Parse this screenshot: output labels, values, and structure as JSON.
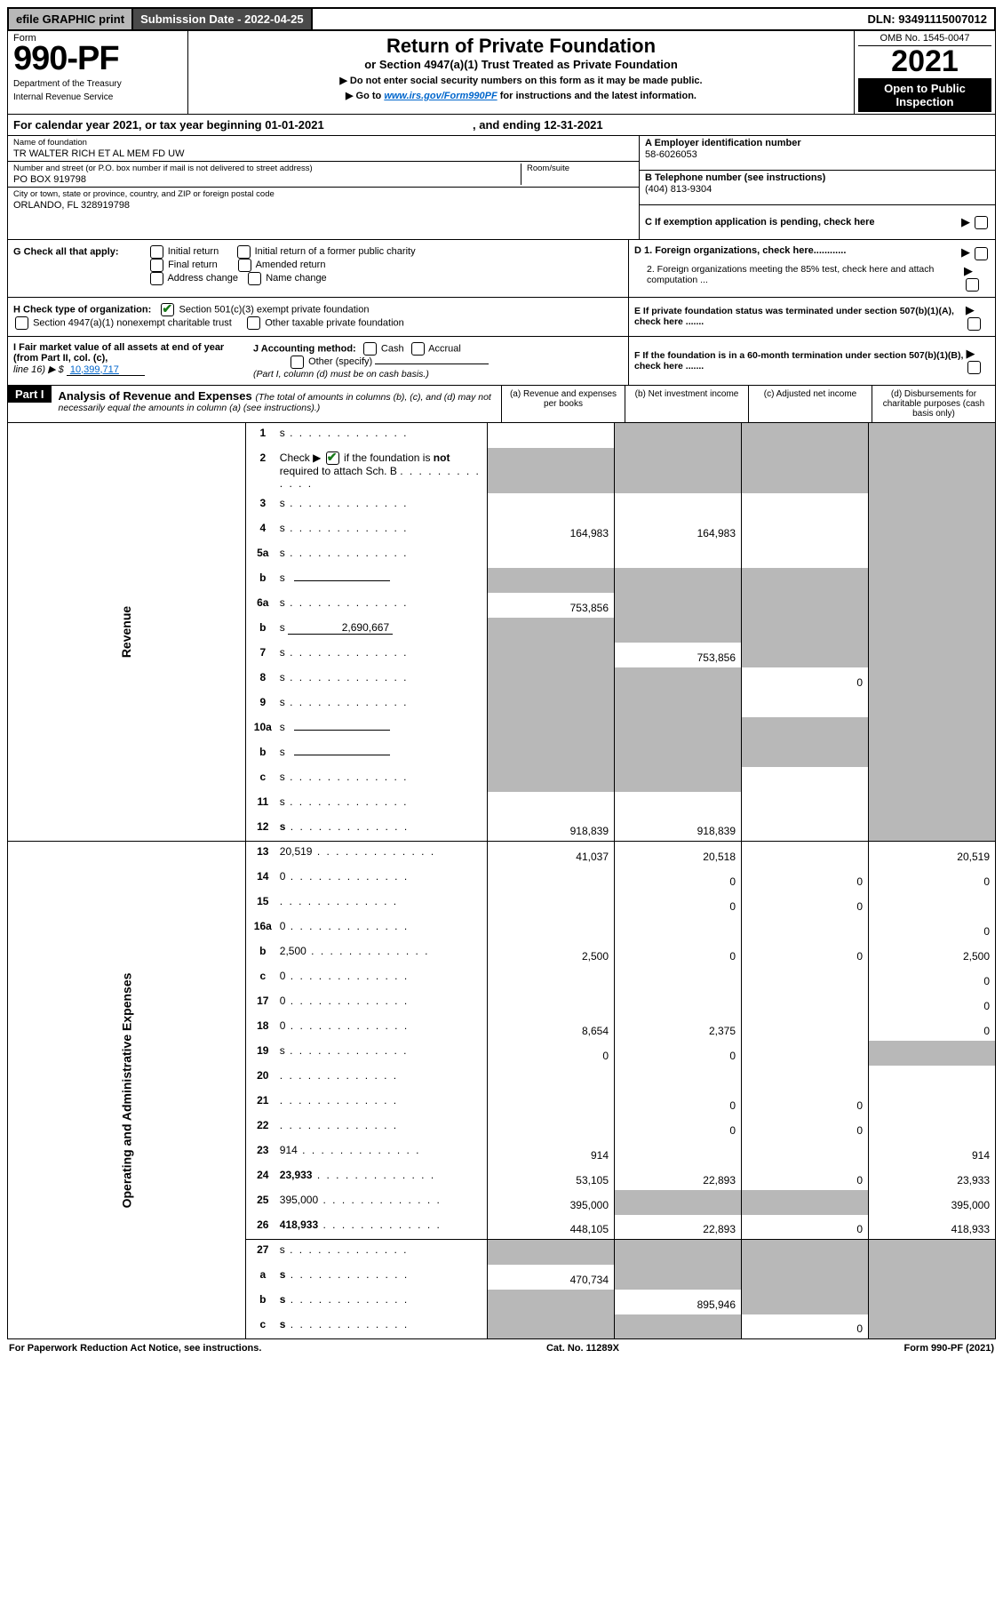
{
  "top": {
    "efile": "efile GRAPHIC print",
    "sub_date_label": "Submission Date - 2022-04-25",
    "dln": "DLN: 93491115007012"
  },
  "header": {
    "form_label": "Form",
    "form_number": "990-PF",
    "dept1": "Department of the Treasury",
    "dept2": "Internal Revenue Service",
    "title": "Return of Private Foundation",
    "subtitle": "or Section 4947(a)(1) Trust Treated as Private Foundation",
    "instr1": "▶ Do not enter social security numbers on this form as it may be made public.",
    "instr2a": "▶ Go to ",
    "instr2_link": "www.irs.gov/Form990PF",
    "instr2b": " for instructions and the latest information.",
    "omb": "OMB No. 1545-0047",
    "year": "2021",
    "open": "Open to Public Inspection"
  },
  "period": {
    "text_a": "For calendar year 2021, or tax year beginning 01-01-2021",
    "text_b": ", and ending 12-31-2021"
  },
  "foundation": {
    "name_label": "Name of foundation",
    "name": "TR WALTER RICH ET AL MEM FD UW",
    "addr_label": "Number and street (or P.O. box number if mail is not delivered to street address)",
    "addr": "PO BOX 919798",
    "room_label": "Room/suite",
    "city_label": "City or town, state or province, country, and ZIP or foreign postal code",
    "city": "ORLANDO, FL  328919798",
    "ein_label": "A Employer identification number",
    "ein": "58-6026053",
    "phone_label": "B Telephone number (see instructions)",
    "phone": "(404) 813-9304",
    "c_label": "C If exemption application is pending, check here"
  },
  "boxG": {
    "label": "G Check all that apply:",
    "opts": [
      "Initial return",
      "Final return",
      "Address change",
      "Initial return of a former public charity",
      "Amended return",
      "Name change"
    ]
  },
  "boxD": {
    "d1": "D 1. Foreign organizations, check here............",
    "d2": "2. Foreign organizations meeting the 85% test, check here and attach computation ..."
  },
  "boxH": {
    "label": "H Check type of organization:",
    "opt1": "Section 501(c)(3) exempt private foundation",
    "opt2": "Section 4947(a)(1) nonexempt charitable trust",
    "opt3": "Other taxable private foundation"
  },
  "boxE": {
    "text": "E If private foundation status was terminated under section 507(b)(1)(A), check here ......."
  },
  "boxI": {
    "label": "I Fair market value of all assets at end of year (from Part II, col. (c),",
    "line": "line 16) ▶ $",
    "value": "10,399,717"
  },
  "boxJ": {
    "label": "J Accounting method:",
    "cash": "Cash",
    "accrual": "Accrual",
    "other": "Other (specify)",
    "note": "(Part I, column (d) must be on cash basis.)"
  },
  "boxF": {
    "text": "F If the foundation is in a 60-month termination under section 507(b)(1)(B), check here ......."
  },
  "part1": {
    "label": "Part I",
    "title": "Analysis of Revenue and Expenses ",
    "note": "(The total of amounts in columns (b), (c), and (d) may not necessarily equal the amounts in column (a) (see instructions).)",
    "col_a": "(a)  Revenue and expenses per books",
    "col_b": "(b)  Net investment income",
    "col_c": "(c)  Adjusted net income",
    "col_d": "(d)  Disbursements for charitable purposes (cash basis only)"
  },
  "side": {
    "revenue": "Revenue",
    "expenses": "Operating and Administrative Expenses"
  },
  "rows": [
    {
      "n": "1",
      "d": "s",
      "a": "",
      "b": "s",
      "c": "s"
    },
    {
      "n": "2",
      "d": "s",
      "a": "s",
      "b": "s",
      "c": "s",
      "raw": true,
      "checked": true
    },
    {
      "n": "3",
      "d": "s",
      "a": "",
      "b": "",
      "c": ""
    },
    {
      "n": "4",
      "d": "s",
      "a": "164,983",
      "b": "164,983",
      "c": ""
    },
    {
      "n": "5a",
      "d": "s",
      "a": "",
      "b": "",
      "c": ""
    },
    {
      "n": "b",
      "d": "s",
      "a": "s",
      "b": "s",
      "c": "s",
      "inline": true
    },
    {
      "n": "6a",
      "d": "s",
      "a": "753,856",
      "b": "s",
      "c": "s"
    },
    {
      "n": "b",
      "d": "s",
      "a": "s",
      "b": "s",
      "c": "s",
      "inline_amt": "2,690,667"
    },
    {
      "n": "7",
      "d": "s",
      "a": "s",
      "b": "753,856",
      "c": "s"
    },
    {
      "n": "8",
      "d": "s",
      "a": "s",
      "b": "s",
      "c": "0"
    },
    {
      "n": "9",
      "d": "s",
      "a": "s",
      "b": "s",
      "c": ""
    },
    {
      "n": "10a",
      "d": "s",
      "a": "s",
      "b": "s",
      "c": "s",
      "inline": true
    },
    {
      "n": "b",
      "d": "s",
      "a": "s",
      "b": "s",
      "c": "s",
      "inline": true
    },
    {
      "n": "c",
      "d": "s",
      "a": "s",
      "b": "s",
      "c": ""
    },
    {
      "n": "11",
      "d": "s",
      "a": "",
      "b": "",
      "c": ""
    },
    {
      "n": "12",
      "d": "s",
      "a": "918,839",
      "b": "918,839",
      "c": "",
      "bold": true
    },
    {
      "n": "13",
      "d": "20,519",
      "a": "41,037",
      "b": "20,518",
      "c": "",
      "sep": true
    },
    {
      "n": "14",
      "d": "0",
      "a": "",
      "b": "0",
      "c": "0"
    },
    {
      "n": "15",
      "d": "",
      "a": "",
      "b": "0",
      "c": "0"
    },
    {
      "n": "16a",
      "d": "0",
      "a": "",
      "b": "",
      "c": ""
    },
    {
      "n": "b",
      "d": "2,500",
      "a": "2,500",
      "b": "0",
      "c": "0"
    },
    {
      "n": "c",
      "d": "0",
      "a": "",
      "b": "",
      "c": ""
    },
    {
      "n": "17",
      "d": "0",
      "a": "",
      "b": "",
      "c": ""
    },
    {
      "n": "18",
      "d": "0",
      "a": "8,654",
      "b": "2,375",
      "c": ""
    },
    {
      "n": "19",
      "d": "s",
      "a": "0",
      "b": "0",
      "c": ""
    },
    {
      "n": "20",
      "d": "",
      "a": "",
      "b": "",
      "c": ""
    },
    {
      "n": "21",
      "d": "",
      "a": "",
      "b": "0",
      "c": "0"
    },
    {
      "n": "22",
      "d": "",
      "a": "",
      "b": "0",
      "c": "0"
    },
    {
      "n": "23",
      "d": "914",
      "a": "914",
      "b": "",
      "c": ""
    },
    {
      "n": "24",
      "d": "23,933",
      "a": "53,105",
      "b": "22,893",
      "c": "0",
      "bold": true
    },
    {
      "n": "25",
      "d": "395,000",
      "a": "395,000",
      "b": "s",
      "c": "s"
    },
    {
      "n": "26",
      "d": "418,933",
      "a": "448,105",
      "b": "22,893",
      "c": "0",
      "bold": true
    },
    {
      "n": "27",
      "d": "s",
      "a": "s",
      "b": "s",
      "c": "s",
      "sep": true
    },
    {
      "n": "a",
      "d": "s",
      "a": "470,734",
      "b": "s",
      "c": "s",
      "bold": true
    },
    {
      "n": "b",
      "d": "s",
      "a": "s",
      "b": "895,946",
      "c": "s",
      "bold": true
    },
    {
      "n": "c",
      "d": "s",
      "a": "s",
      "b": "s",
      "c": "0",
      "bold": true
    }
  ],
  "footer": {
    "left": "For Paperwork Reduction Act Notice, see instructions.",
    "mid": "Cat. No. 11289X",
    "right": "Form 990-PF (2021)"
  },
  "colors": {
    "shade": "#b8b8b8",
    "header_dark": "#4a4a4a",
    "link": "#0066cc",
    "check_green": "#1a7a1a"
  }
}
